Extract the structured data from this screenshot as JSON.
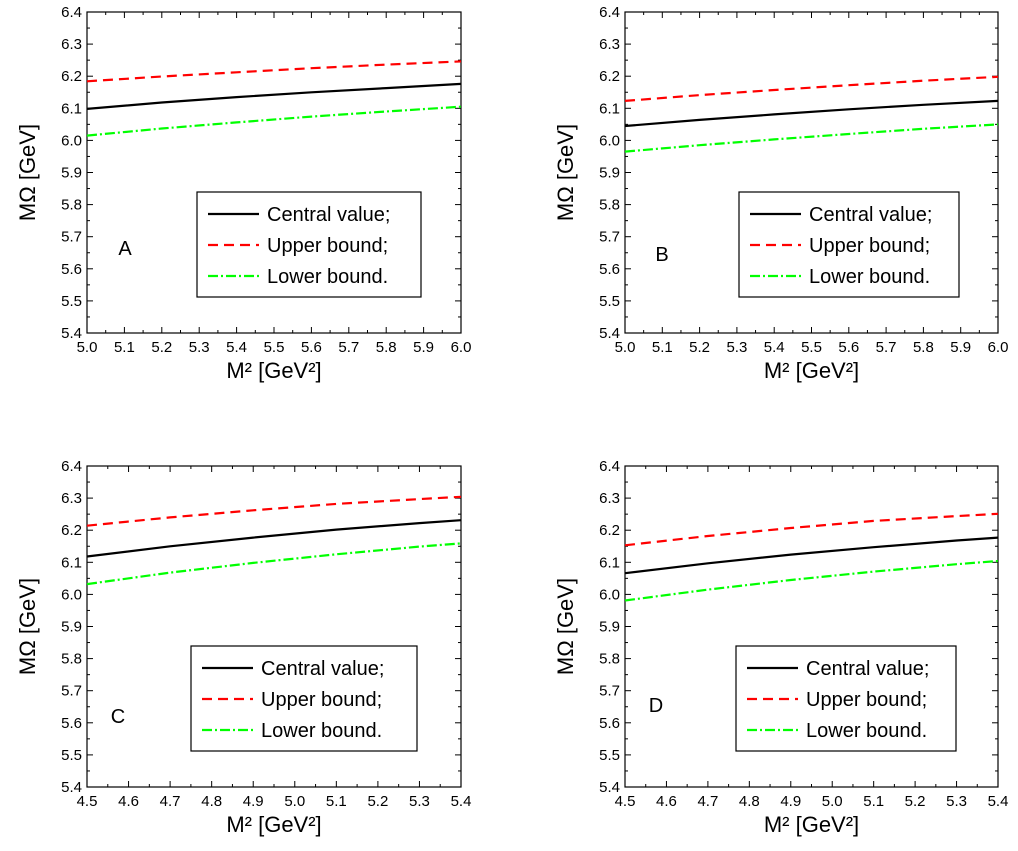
{
  "chart_data": [
    {
      "type": "line",
      "panel_label": "A",
      "xlabel": "M²",
      "xunit": "[GeV²]",
      "ylabel": "MΩ",
      "yunit": "[GeV]",
      "xlim": [
        5.0,
        6.0
      ],
      "ylim": [
        5.4,
        6.4
      ],
      "x_ticks": [
        "5.0",
        "5.1",
        "5.2",
        "5.3",
        "5.4",
        "5.5",
        "5.6",
        "5.7",
        "5.8",
        "5.9",
        "6.0"
      ],
      "y_ticks": [
        "5.4",
        "5.5",
        "5.6",
        "5.7",
        "5.8",
        "5.9",
        "6.0",
        "6.1",
        "6.2",
        "6.3",
        "6.4"
      ],
      "legend_placement": "lower-right",
      "x": [
        5.0,
        5.2,
        5.4,
        5.6,
        5.8,
        6.0
      ],
      "series": [
        {
          "name": "Central value;",
          "color": "#000000",
          "dash": "solid",
          "values": [
            6.098,
            6.118,
            6.135,
            6.15,
            6.163,
            6.176
          ]
        },
        {
          "name": "Upper bound;",
          "color": "#ff0000",
          "dash": "dash",
          "values": [
            6.184,
            6.199,
            6.212,
            6.225,
            6.236,
            6.246
          ]
        },
        {
          "name": "Lower bound.",
          "color": "#00ff00",
          "dash": "dashdot",
          "values": [
            6.015,
            6.037,
            6.056,
            6.074,
            6.09,
            6.105
          ]
        }
      ]
    },
    {
      "type": "line",
      "panel_label": "B",
      "xlabel": "M²",
      "xunit": "[GeV²]",
      "ylabel": "MΩ",
      "yunit": "[GeV]",
      "xlim": [
        5.0,
        6.0
      ],
      "ylim": [
        5.4,
        6.4
      ],
      "x_ticks": [
        "5.0",
        "5.1",
        "5.2",
        "5.3",
        "5.4",
        "5.5",
        "5.6",
        "5.7",
        "5.8",
        "5.9",
        "6.0"
      ],
      "y_ticks": [
        "5.4",
        "5.5",
        "5.6",
        "5.7",
        "5.8",
        "5.9",
        "6.0",
        "6.1",
        "6.2",
        "6.3",
        "6.4"
      ],
      "legend_placement": "lower-right",
      "x": [
        5.0,
        5.2,
        5.4,
        5.6,
        5.8,
        6.0
      ],
      "series": [
        {
          "name": "Central value;",
          "color": "#000000",
          "dash": "solid",
          "values": [
            6.045,
            6.064,
            6.081,
            6.097,
            6.111,
            6.123
          ]
        },
        {
          "name": "Upper bound;",
          "color": "#ff0000",
          "dash": "dash",
          "values": [
            6.123,
            6.141,
            6.157,
            6.172,
            6.186,
            6.198
          ]
        },
        {
          "name": "Lower bound.",
          "color": "#00ff00",
          "dash": "dashdot",
          "values": [
            5.965,
            5.985,
            6.003,
            6.02,
            6.036,
            6.05
          ]
        }
      ]
    },
    {
      "type": "line",
      "panel_label": "C",
      "xlabel": "M²",
      "xunit": "[GeV²]",
      "ylabel": "MΩ",
      "yunit": "[GeV]",
      "xlim": [
        4.5,
        5.4
      ],
      "ylim": [
        5.4,
        6.4
      ],
      "x_ticks": [
        "4.5",
        "4.6",
        "4.7",
        "4.8",
        "4.9",
        "5.0",
        "5.1",
        "5.2",
        "5.3",
        "5.4"
      ],
      "y_ticks": [
        "5.4",
        "5.5",
        "5.6",
        "5.7",
        "5.8",
        "5.9",
        "6.0",
        "6.1",
        "6.2",
        "6.3",
        "6.4"
      ],
      "legend_placement": "lower-right",
      "x": [
        4.5,
        4.7,
        4.9,
        5.1,
        5.3,
        5.4
      ],
      "series": [
        {
          "name": "Central value;",
          "color": "#000000",
          "dash": "solid",
          "values": [
            6.118,
            6.15,
            6.177,
            6.202,
            6.222,
            6.231
          ]
        },
        {
          "name": "Upper bound;",
          "color": "#ff0000",
          "dash": "dash",
          "values": [
            6.214,
            6.24,
            6.262,
            6.282,
            6.297,
            6.304
          ]
        },
        {
          "name": "Lower bound.",
          "color": "#00ff00",
          "dash": "dashdot",
          "values": [
            6.032,
            6.068,
            6.098,
            6.125,
            6.149,
            6.159
          ]
        }
      ]
    },
    {
      "type": "line",
      "panel_label": "D",
      "xlabel": "M²",
      "xunit": "[GeV²]",
      "ylabel": "MΩ",
      "yunit": "[GeV]",
      "xlim": [
        4.5,
        5.4
      ],
      "ylim": [
        5.4,
        6.4
      ],
      "x_ticks": [
        "4.5",
        "4.6",
        "4.7",
        "4.8",
        "4.9",
        "5.0",
        "5.1",
        "5.2",
        "5.3",
        "5.4"
      ],
      "y_ticks": [
        "5.4",
        "5.5",
        "5.6",
        "5.7",
        "5.8",
        "5.9",
        "6.0",
        "6.1",
        "6.2",
        "6.3",
        "6.4"
      ],
      "legend_placement": "lower-right",
      "x": [
        4.5,
        4.7,
        4.9,
        5.1,
        5.3,
        5.4
      ],
      "series": [
        {
          "name": "Central value;",
          "color": "#000000",
          "dash": "solid",
          "values": [
            6.066,
            6.097,
            6.124,
            6.147,
            6.168,
            6.177
          ]
        },
        {
          "name": "Upper bound;",
          "color": "#ff0000",
          "dash": "dash",
          "values": [
            6.153,
            6.182,
            6.207,
            6.229,
            6.244,
            6.251
          ]
        },
        {
          "name": "Lower bound.",
          "color": "#00ff00",
          "dash": "dashdot",
          "values": [
            5.981,
            6.015,
            6.045,
            6.071,
            6.094,
            6.104
          ]
        }
      ]
    }
  ]
}
